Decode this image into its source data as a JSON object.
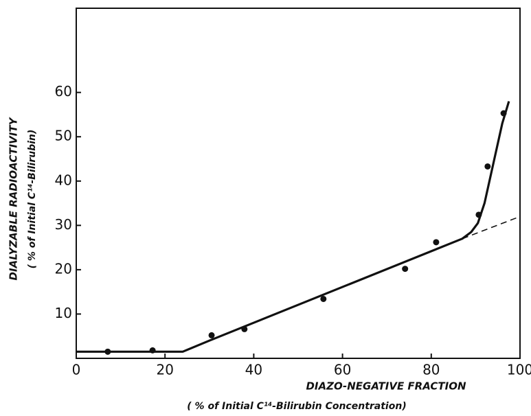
{
  "chart_data": {
    "type": "scatter",
    "xlabel": "DIAZO-NEGATIVE FRACTION",
    "xlabel_sub": "( % of Initial C¹⁴-Bilirubin Concentration)",
    "ylabel": "DIALYZABLE RADIOACTIVITY",
    "ylabel_sub": "( % of Initial C¹⁴-Bilirubin)",
    "xlim": [
      0,
      100
    ],
    "ylim": [
      0,
      79
    ],
    "xticks": [
      0,
      20,
      40,
      60,
      80,
      100
    ],
    "yticks": [
      10,
      20,
      30,
      40,
      50,
      60
    ],
    "series": [
      {
        "type": "scatter",
        "color": "#111111",
        "x": [
          7.1,
          17.2,
          30.5,
          37.9,
          55.7,
          74.1,
          81.1,
          90.7,
          92.7,
          96.3
        ],
        "values": [
          1.5,
          1.8,
          5.2,
          6.6,
          13.4,
          20.2,
          26.2,
          32.4,
          43.3,
          55.3
        ]
      },
      {
        "type": "line",
        "style": "solid",
        "color": "#111111",
        "x": [
          0,
          24,
          30,
          87,
          89,
          90.5,
          92,
          94,
          96,
          97.5
        ],
        "values": [
          1.5,
          1.5,
          4,
          27,
          28.5,
          30.5,
          35,
          44,
          53,
          58
        ]
      },
      {
        "type": "line",
        "style": "dashed",
        "color": "#111111",
        "x": [
          87,
          100
        ],
        "values": [
          27,
          32
        ]
      }
    ]
  }
}
